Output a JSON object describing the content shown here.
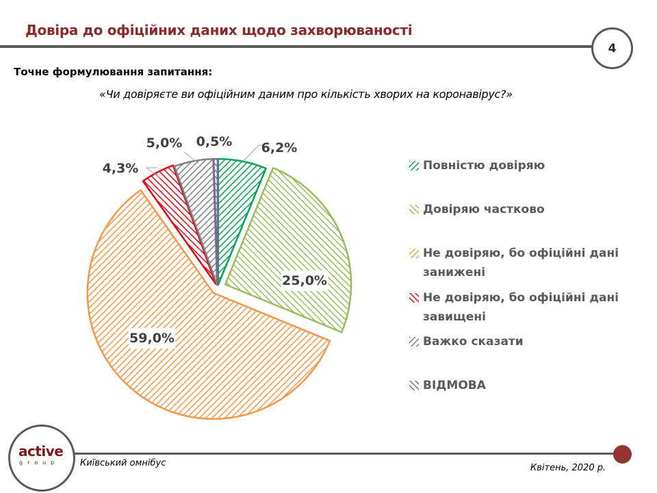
{
  "header": {
    "title": "Довіра до офіційних даних щодо захворюваності",
    "page_number": "4"
  },
  "question": {
    "label": "Точне формулювання  запитання:",
    "text": "«Чи довіряєте ви офіційним даним про кількість хворих на коронавірус?»"
  },
  "chart_data": {
    "type": "pie",
    "title": "",
    "exploded": true,
    "start_angle": "12 o'clock",
    "direction": "clockwise",
    "legend_position": "right",
    "categories": [
      "Повністю довіряю",
      "Довіряю частково",
      "Не довіряю, бо офіційні дані занижені",
      "Не довіряю, бо офіційні дані завищені",
      "Важко сказати",
      "ВІДМОВА"
    ],
    "values": [
      6.2,
      25.0,
      59.0,
      4.3,
      5.0,
      0.5
    ],
    "value_labels": [
      "6,2%",
      "25,0%",
      "59,0%",
      "4,3%",
      "5,0%",
      "0,5%"
    ],
    "colors": [
      "#00a651",
      "#9bbb59",
      "#f79646",
      "#e30613",
      "#7f7f7f",
      "#8064a2"
    ],
    "hatch": [
      "back",
      "fwd",
      "back",
      "fwd",
      "back",
      "fwd"
    ]
  },
  "legend": {
    "items": [
      {
        "label": "Повністю довіряю"
      },
      {
        "label": "Довіряю частково"
      },
      {
        "label": "Не довіряю, бо офіційні дані занижені"
      },
      {
        "label": "Не довіряю, бо офіційні дані завищені"
      },
      {
        "label": "Важко сказати"
      },
      {
        "label": "ВІДМОВА"
      }
    ]
  },
  "footer": {
    "logo_main": "active",
    "logo_sub": "group",
    "source": "Київський омнібус",
    "date": "Квітень, 2020 р."
  }
}
